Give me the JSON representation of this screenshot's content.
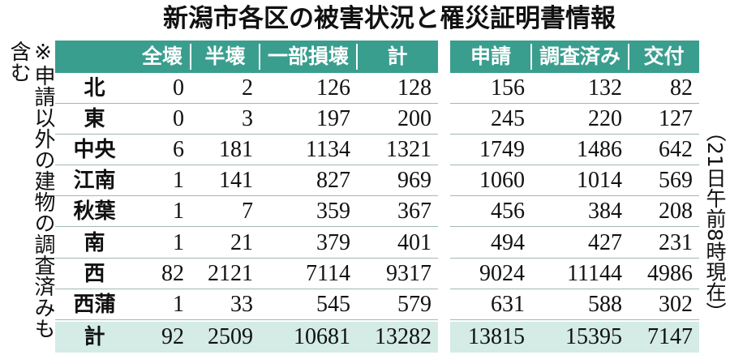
{
  "title": "新潟市各区の被害状況と罹災証明書情報",
  "note": "※申請以外の建物の調査済みも含む",
  "timestamp": "（21日午前8時現在）",
  "table": {
    "headers": [
      "全壊",
      "半壊",
      "一部損壊",
      "計",
      "申請",
      "調査済み",
      "交付"
    ],
    "rows": [
      [
        "北",
        0,
        2,
        126,
        128,
        156,
        132,
        82
      ],
      [
        "東",
        0,
        3,
        197,
        200,
        245,
        220,
        127
      ],
      [
        "中央",
        6,
        181,
        1134,
        1321,
        1749,
        1486,
        642
      ],
      [
        "江南",
        1,
        141,
        827,
        969,
        1060,
        1014,
        569
      ],
      [
        "秋葉",
        1,
        7,
        359,
        367,
        456,
        384,
        208
      ],
      [
        "南",
        1,
        21,
        379,
        401,
        494,
        427,
        231
      ],
      [
        "西",
        82,
        2121,
        7114,
        9317,
        9024,
        11144,
        4986
      ],
      [
        "西蒲",
        1,
        33,
        545,
        579,
        631,
        588,
        302
      ]
    ],
    "total": [
      "計",
      92,
      2509,
      10681,
      13282,
      13815,
      15395,
      7147
    ]
  }
}
